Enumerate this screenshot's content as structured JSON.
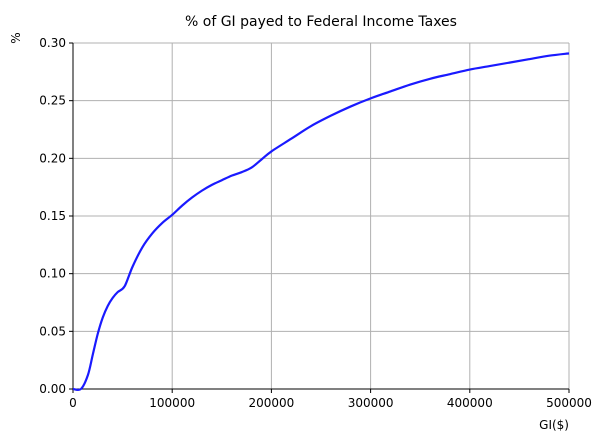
{
  "chart_data": {
    "type": "line",
    "title": "% of GI payed to Federal Income Taxes",
    "xlabel": "GI($)",
    "ylabel": "%",
    "xlim": [
      0,
      500000
    ],
    "ylim": [
      0.0,
      0.3
    ],
    "grid": true,
    "x_ticks": [
      0,
      100000,
      200000,
      300000,
      400000,
      500000
    ],
    "x_tick_labels": [
      "0",
      "100000",
      "200000",
      "300000",
      "400000",
      "500000"
    ],
    "y_ticks": [
      0.0,
      0.05,
      0.1,
      0.15,
      0.2,
      0.25,
      0.3
    ],
    "y_tick_labels": [
      "0.00",
      "0.05",
      "0.10",
      "0.15",
      "0.20",
      "0.25",
      "0.30"
    ],
    "series": [
      {
        "name": "% of GI",
        "color": "#1a1aff",
        "x": [
          0,
          8000,
          15000,
          20000,
          25000,
          30000,
          35000,
          40000,
          45000,
          52000,
          60000,
          70000,
          80000,
          90000,
          100000,
          110000,
          120000,
          130000,
          140000,
          150000,
          160000,
          170000,
          180000,
          190000,
          200000,
          220000,
          240000,
          260000,
          280000,
          300000,
          320000,
          340000,
          360000,
          380000,
          400000,
          420000,
          440000,
          460000,
          480000,
          500000
        ],
        "y": [
          0.0,
          0.0,
          0.012,
          0.03,
          0.048,
          0.062,
          0.072,
          0.079,
          0.084,
          0.089,
          0.106,
          0.123,
          0.135,
          0.144,
          0.151,
          0.159,
          0.166,
          0.172,
          0.177,
          0.181,
          0.185,
          0.188,
          0.192,
          0.199,
          0.206,
          0.217,
          0.228,
          0.237,
          0.245,
          0.252,
          0.258,
          0.264,
          0.269,
          0.273,
          0.277,
          0.28,
          0.283,
          0.286,
          0.289,
          0.291
        ]
      }
    ]
  }
}
